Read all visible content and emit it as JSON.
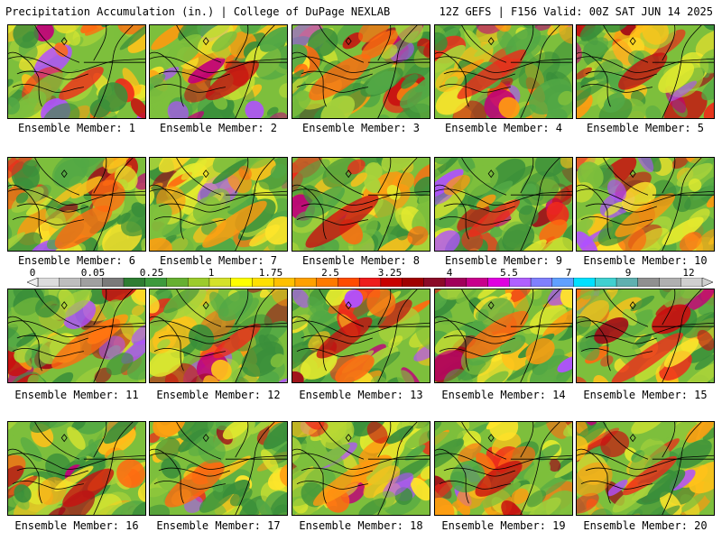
{
  "header": {
    "title_left": "Precipitation Accumulation (in.) | College of DuPage NEXLAB",
    "title_right": "12Z GEFS | F156 Valid: 00Z SAT JUN 14 2025"
  },
  "panels": [
    {
      "label": "Ensemble Member: 1"
    },
    {
      "label": "Ensemble Member: 2"
    },
    {
      "label": "Ensemble Member: 3"
    },
    {
      "label": "Ensemble Member: 4"
    },
    {
      "label": "Ensemble Member: 5"
    },
    {
      "label": "Ensemble Member: 6"
    },
    {
      "label": "Ensemble Member: 7"
    },
    {
      "label": "Ensemble Member: 8"
    },
    {
      "label": "Ensemble Member: 9"
    },
    {
      "label": "Ensemble Member: 10"
    },
    {
      "label": "Ensemble Member: 11"
    },
    {
      "label": "Ensemble Member: 12"
    },
    {
      "label": "Ensemble Member: 13"
    },
    {
      "label": "Ensemble Member: 14"
    },
    {
      "label": "Ensemble Member: 15"
    },
    {
      "label": "Ensemble Member: 16"
    },
    {
      "label": "Ensemble Member: 17"
    },
    {
      "label": "Ensemble Member: 18"
    },
    {
      "label": "Ensemble Member: 19"
    },
    {
      "label": "Ensemble Member: 20"
    }
  ],
  "colorbar": {
    "labels": [
      "0",
      "0.05",
      "0.25",
      "1",
      "1.75",
      "2.5",
      "3.25",
      "4",
      "5.5",
      "7",
      "9",
      "12"
    ],
    "colors": [
      "#dcdcdc",
      "#bebebe",
      "#a0a0a0",
      "#7a7a7a",
      "#2e7d32",
      "#3d9a3d",
      "#66b032",
      "#9ccc2c",
      "#d4e22a",
      "#ffff00",
      "#ffe000",
      "#ffc000",
      "#ffa000",
      "#ff7a00",
      "#ff4c00",
      "#ee1c1c",
      "#c80000",
      "#a00000",
      "#8b0a28",
      "#a0005a",
      "#c8008c",
      "#e000e0",
      "#b060ff",
      "#8080ff",
      "#60a0ff",
      "#00e0ff",
      "#40d0d0",
      "#60b0b0",
      "#909090",
      "#b0b0b0",
      "#d0d0d0"
    ]
  }
}
